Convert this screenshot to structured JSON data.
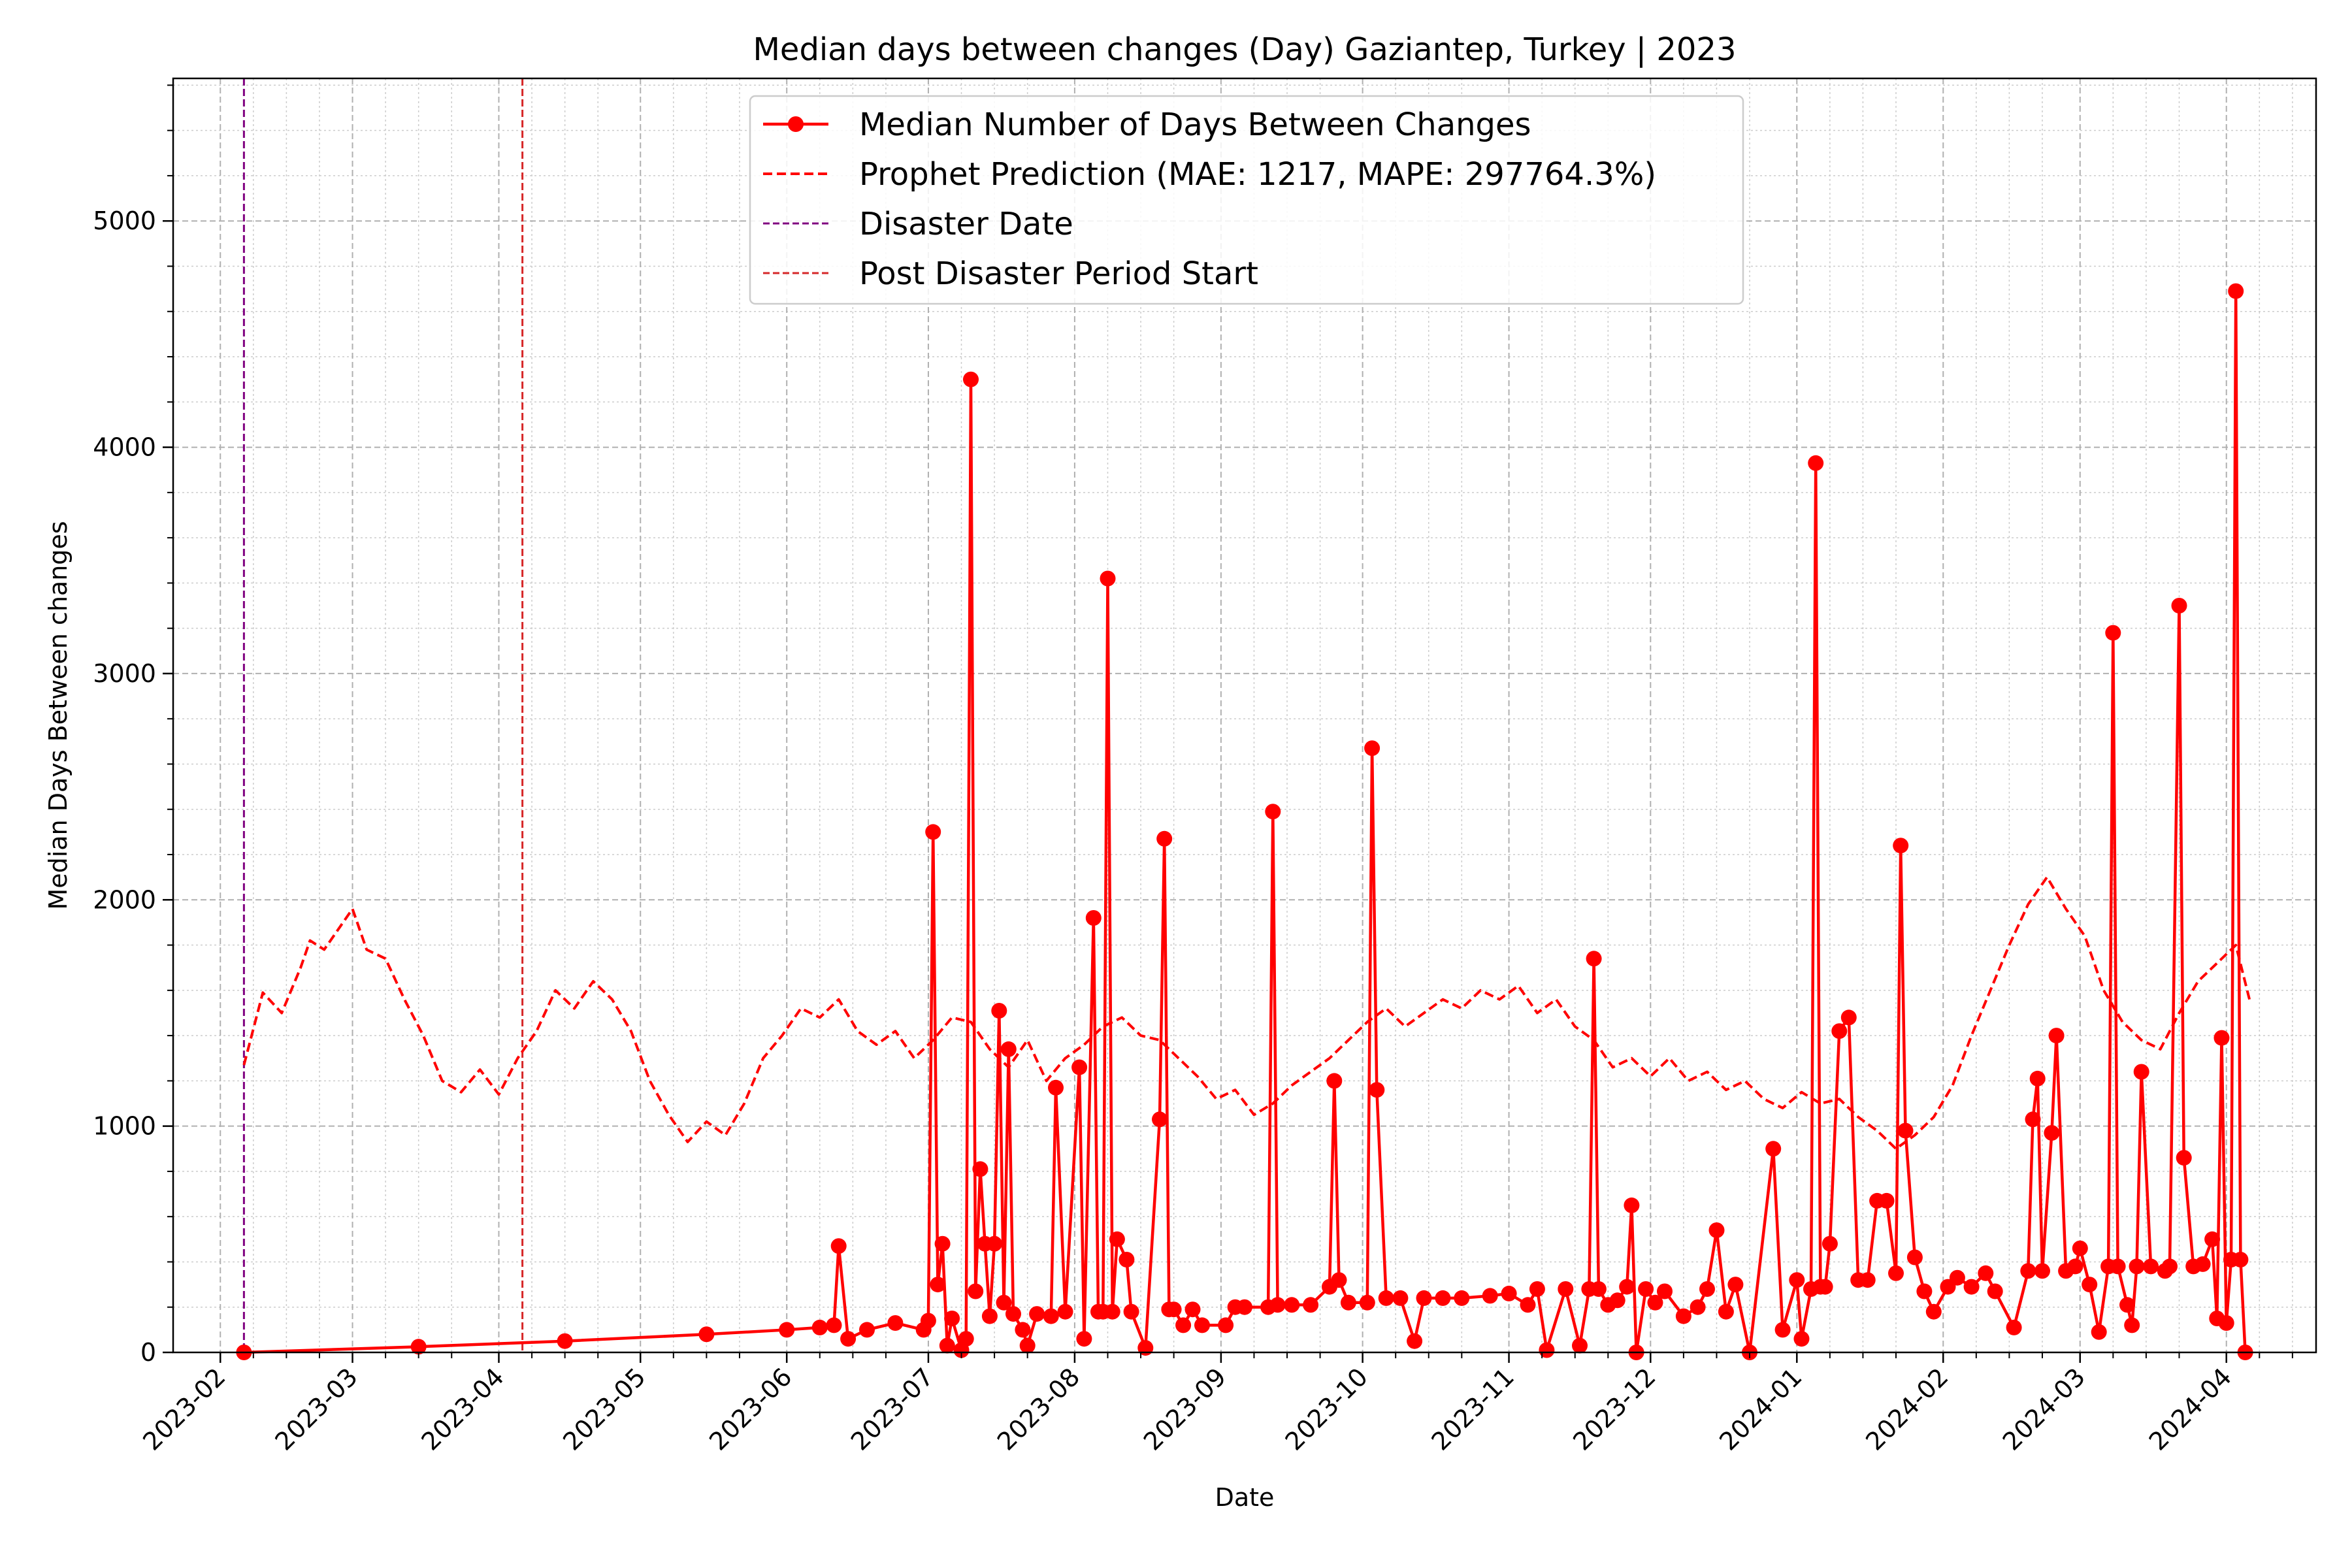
{
  "chart_data": {
    "type": "line",
    "title": "Median days between changes (Day) Gaziantep, Turkey | 2023",
    "xlabel": "Date",
    "ylabel": "Median Days Between changes",
    "xlim": [
      "2023-01-22",
      "2024-04-20"
    ],
    "ylim": [
      0,
      5630
    ],
    "grid": true,
    "legend_position": "top-center",
    "x_ticks": [
      "2023-02",
      "2023-03",
      "2023-04",
      "2023-05",
      "2023-06",
      "2023-07",
      "2023-08",
      "2023-09",
      "2023-10",
      "2023-11",
      "2023-12",
      "2024-01",
      "2024-02",
      "2024-03",
      "2024-04"
    ],
    "y_ticks": [
      0,
      1000,
      2000,
      3000,
      4000,
      5000
    ],
    "vlines": [
      {
        "name": "Disaster Date",
        "x": "2023-02-06",
        "color": "#800080"
      },
      {
        "name": "Post Disaster Period Start",
        "x": "2023-04-06",
        "color": "#d62728"
      }
    ],
    "series": [
      {
        "name": "Median Number of Days Between Changes",
        "style": "line-marker",
        "color": "#ff0000",
        "points": [
          [
            "2023-02-06",
            0
          ],
          [
            "2023-03-15",
            25
          ],
          [
            "2023-04-15",
            50
          ],
          [
            "2023-05-15",
            80
          ],
          [
            "2023-06-01",
            100
          ],
          [
            "2023-06-08",
            110
          ],
          [
            "2023-06-11",
            120
          ],
          [
            "2023-06-12",
            470
          ],
          [
            "2023-06-14",
            60
          ],
          [
            "2023-06-18",
            100
          ],
          [
            "2023-06-24",
            130
          ],
          [
            "2023-06-30",
            100
          ],
          [
            "2023-07-01",
            140
          ],
          [
            "2023-07-02",
            2300
          ],
          [
            "2023-07-03",
            300
          ],
          [
            "2023-07-04",
            480
          ],
          [
            "2023-07-05",
            30
          ],
          [
            "2023-07-06",
            150
          ],
          [
            "2023-07-08",
            10
          ],
          [
            "2023-07-09",
            60
          ],
          [
            "2023-07-10",
            4300
          ],
          [
            "2023-07-11",
            270
          ],
          [
            "2023-07-12",
            810
          ],
          [
            "2023-07-13",
            480
          ],
          [
            "2023-07-14",
            160
          ],
          [
            "2023-07-15",
            480
          ],
          [
            "2023-07-16",
            1510
          ],
          [
            "2023-07-17",
            220
          ],
          [
            "2023-07-18",
            1340
          ],
          [
            "2023-07-19",
            170
          ],
          [
            "2023-07-21",
            100
          ],
          [
            "2023-07-22",
            30
          ],
          [
            "2023-07-24",
            170
          ],
          [
            "2023-07-27",
            160
          ],
          [
            "2023-07-28",
            1170
          ],
          [
            "2023-07-30",
            180
          ],
          [
            "2023-08-02",
            1260
          ],
          [
            "2023-08-03",
            60
          ],
          [
            "2023-08-05",
            1920
          ],
          [
            "2023-08-06",
            180
          ],
          [
            "2023-08-07",
            180
          ],
          [
            "2023-08-08",
            3420
          ],
          [
            "2023-08-09",
            180
          ],
          [
            "2023-08-10",
            500
          ],
          [
            "2023-08-12",
            410
          ],
          [
            "2023-08-13",
            180
          ],
          [
            "2023-08-16",
            20
          ],
          [
            "2023-08-19",
            1030
          ],
          [
            "2023-08-20",
            2270
          ],
          [
            "2023-08-21",
            190
          ],
          [
            "2023-08-22",
            190
          ],
          [
            "2023-08-24",
            120
          ],
          [
            "2023-08-26",
            190
          ],
          [
            "2023-08-28",
            120
          ],
          [
            "2023-09-02",
            120
          ],
          [
            "2023-09-04",
            200
          ],
          [
            "2023-09-06",
            200
          ],
          [
            "2023-09-11",
            200
          ],
          [
            "2023-09-12",
            2390
          ],
          [
            "2023-09-13",
            210
          ],
          [
            "2023-09-16",
            210
          ],
          [
            "2023-09-20",
            210
          ],
          [
            "2023-09-24",
            290
          ],
          [
            "2023-09-25",
            1200
          ],
          [
            "2023-09-26",
            320
          ],
          [
            "2023-09-28",
            220
          ],
          [
            "2023-10-02",
            220
          ],
          [
            "2023-10-03",
            2670
          ],
          [
            "2023-10-04",
            1160
          ],
          [
            "2023-10-06",
            240
          ],
          [
            "2023-10-09",
            240
          ],
          [
            "2023-10-12",
            50
          ],
          [
            "2023-10-14",
            240
          ],
          [
            "2023-10-18",
            240
          ],
          [
            "2023-10-22",
            240
          ],
          [
            "2023-10-28",
            250
          ],
          [
            "2023-11-01",
            260
          ],
          [
            "2023-11-05",
            210
          ],
          [
            "2023-11-07",
            280
          ],
          [
            "2023-11-09",
            10
          ],
          [
            "2023-11-13",
            280
          ],
          [
            "2023-11-16",
            30
          ],
          [
            "2023-11-18",
            280
          ],
          [
            "2023-11-19",
            1740
          ],
          [
            "2023-11-20",
            280
          ],
          [
            "2023-11-22",
            210
          ],
          [
            "2023-11-24",
            230
          ],
          [
            "2023-11-26",
            290
          ],
          [
            "2023-11-27",
            650
          ],
          [
            "2023-11-28",
            0
          ],
          [
            "2023-11-30",
            280
          ],
          [
            "2023-12-02",
            220
          ],
          [
            "2023-12-04",
            270
          ],
          [
            "2023-12-08",
            160
          ],
          [
            "2023-12-11",
            200
          ],
          [
            "2023-12-13",
            280
          ],
          [
            "2023-12-15",
            540
          ],
          [
            "2023-12-17",
            180
          ],
          [
            "2023-12-19",
            300
          ],
          [
            "2023-12-22",
            0
          ],
          [
            "2023-12-27",
            900
          ],
          [
            "2023-12-29",
            100
          ],
          [
            "2024-01-01",
            320
          ],
          [
            "2024-01-02",
            60
          ],
          [
            "2024-01-04",
            280
          ],
          [
            "2024-01-05",
            3930
          ],
          [
            "2024-01-06",
            290
          ],
          [
            "2024-01-07",
            290
          ],
          [
            "2024-01-08",
            480
          ],
          [
            "2024-01-10",
            1420
          ],
          [
            "2024-01-12",
            1480
          ],
          [
            "2024-01-14",
            320
          ],
          [
            "2024-01-16",
            320
          ],
          [
            "2024-01-18",
            670
          ],
          [
            "2024-01-20",
            670
          ],
          [
            "2024-01-22",
            350
          ],
          [
            "2024-01-23",
            2240
          ],
          [
            "2024-01-24",
            980
          ],
          [
            "2024-01-26",
            420
          ],
          [
            "2024-01-28",
            270
          ],
          [
            "2024-01-30",
            180
          ],
          [
            "2024-02-02",
            290
          ],
          [
            "2024-02-04",
            330
          ],
          [
            "2024-02-07",
            290
          ],
          [
            "2024-02-10",
            350
          ],
          [
            "2024-02-12",
            270
          ],
          [
            "2024-02-16",
            110
          ],
          [
            "2024-02-19",
            360
          ],
          [
            "2024-02-20",
            1030
          ],
          [
            "2024-02-21",
            1210
          ],
          [
            "2024-02-22",
            360
          ],
          [
            "2024-02-24",
            970
          ],
          [
            "2024-02-25",
            1400
          ],
          [
            "2024-02-27",
            360
          ],
          [
            "2024-02-29",
            380
          ],
          [
            "2024-03-01",
            460
          ],
          [
            "2024-03-03",
            300
          ],
          [
            "2024-03-05",
            90
          ],
          [
            "2024-03-07",
            380
          ],
          [
            "2024-03-08",
            3180
          ],
          [
            "2024-03-09",
            380
          ],
          [
            "2024-03-11",
            210
          ],
          [
            "2024-03-12",
            120
          ],
          [
            "2024-03-13",
            380
          ],
          [
            "2024-03-14",
            1240
          ],
          [
            "2024-03-16",
            380
          ],
          [
            "2024-03-19",
            360
          ],
          [
            "2024-03-20",
            380
          ],
          [
            "2024-03-22",
            3300
          ],
          [
            "2024-03-23",
            860
          ],
          [
            "2024-03-25",
            380
          ],
          [
            "2024-03-27",
            390
          ],
          [
            "2024-03-29",
            500
          ],
          [
            "2024-03-30",
            150
          ],
          [
            "2024-03-31",
            1390
          ],
          [
            "2024-04-01",
            130
          ],
          [
            "2024-04-02",
            410
          ],
          [
            "2024-04-03",
            4690
          ],
          [
            "2024-04-04",
            410
          ],
          [
            "2024-04-05",
            0
          ]
        ]
      },
      {
        "name": "Prophet Prediction (MAE: 1217, MAPE: 297764.3%)",
        "style": "dashed",
        "color": "#ff0000",
        "points": [
          [
            "2023-02-06",
            1270
          ],
          [
            "2023-02-10",
            1590
          ],
          [
            "2023-02-14",
            1500
          ],
          [
            "2023-02-18",
            1700
          ],
          [
            "2023-02-20",
            1820
          ],
          [
            "2023-02-23",
            1780
          ],
          [
            "2023-02-27",
            1900
          ],
          [
            "2023-03-01",
            1960
          ],
          [
            "2023-03-04",
            1780
          ],
          [
            "2023-03-08",
            1740
          ],
          [
            "2023-03-12",
            1560
          ],
          [
            "2023-03-16",
            1400
          ],
          [
            "2023-03-20",
            1200
          ],
          [
            "2023-03-24",
            1150
          ],
          [
            "2023-03-28",
            1250
          ],
          [
            "2023-04-01",
            1140
          ],
          [
            "2023-04-05",
            1300
          ],
          [
            "2023-04-09",
            1420
          ],
          [
            "2023-04-13",
            1600
          ],
          [
            "2023-04-17",
            1520
          ],
          [
            "2023-04-21",
            1640
          ],
          [
            "2023-04-25",
            1560
          ],
          [
            "2023-04-29",
            1420
          ],
          [
            "2023-05-03",
            1200
          ],
          [
            "2023-05-07",
            1050
          ],
          [
            "2023-05-11",
            930
          ],
          [
            "2023-05-15",
            1020
          ],
          [
            "2023-05-19",
            960
          ],
          [
            "2023-05-23",
            1100
          ],
          [
            "2023-05-27",
            1300
          ],
          [
            "2023-05-31",
            1400
          ],
          [
            "2023-06-04",
            1520
          ],
          [
            "2023-06-08",
            1480
          ],
          [
            "2023-06-12",
            1560
          ],
          [
            "2023-06-16",
            1420
          ],
          [
            "2023-06-20",
            1360
          ],
          [
            "2023-06-24",
            1420
          ],
          [
            "2023-06-28",
            1300
          ],
          [
            "2023-07-02",
            1380
          ],
          [
            "2023-07-06",
            1480
          ],
          [
            "2023-07-10",
            1460
          ],
          [
            "2023-07-14",
            1340
          ],
          [
            "2023-07-18",
            1260
          ],
          [
            "2023-07-22",
            1380
          ],
          [
            "2023-07-26",
            1200
          ],
          [
            "2023-07-30",
            1300
          ],
          [
            "2023-08-03",
            1360
          ],
          [
            "2023-08-07",
            1440
          ],
          [
            "2023-08-11",
            1480
          ],
          [
            "2023-08-15",
            1400
          ],
          [
            "2023-08-19",
            1380
          ],
          [
            "2023-08-23",
            1300
          ],
          [
            "2023-08-27",
            1220
          ],
          [
            "2023-08-31",
            1120
          ],
          [
            "2023-09-04",
            1160
          ],
          [
            "2023-09-08",
            1050
          ],
          [
            "2023-09-12",
            1100
          ],
          [
            "2023-09-16",
            1180
          ],
          [
            "2023-09-20",
            1240
          ],
          [
            "2023-09-24",
            1300
          ],
          [
            "2023-09-28",
            1380
          ],
          [
            "2023-10-02",
            1460
          ],
          [
            "2023-10-06",
            1520
          ],
          [
            "2023-10-10",
            1440
          ],
          [
            "2023-10-14",
            1500
          ],
          [
            "2023-10-18",
            1560
          ],
          [
            "2023-10-22",
            1520
          ],
          [
            "2023-10-26",
            1600
          ],
          [
            "2023-10-30",
            1560
          ],
          [
            "2023-11-03",
            1620
          ],
          [
            "2023-11-07",
            1500
          ],
          [
            "2023-11-11",
            1560
          ],
          [
            "2023-11-15",
            1440
          ],
          [
            "2023-11-19",
            1380
          ],
          [
            "2023-11-23",
            1260
          ],
          [
            "2023-11-27",
            1300
          ],
          [
            "2023-12-01",
            1220
          ],
          [
            "2023-12-05",
            1300
          ],
          [
            "2023-12-09",
            1200
          ],
          [
            "2023-12-13",
            1240
          ],
          [
            "2023-12-17",
            1160
          ],
          [
            "2023-12-21",
            1200
          ],
          [
            "2023-12-25",
            1120
          ],
          [
            "2023-12-29",
            1080
          ],
          [
            "2024-01-02",
            1150
          ],
          [
            "2024-01-06",
            1100
          ],
          [
            "2024-01-10",
            1120
          ],
          [
            "2024-01-14",
            1040
          ],
          [
            "2024-01-18",
            980
          ],
          [
            "2024-01-22",
            900
          ],
          [
            "2024-01-26",
            960
          ],
          [
            "2024-01-30",
            1040
          ],
          [
            "2024-02-03",
            1180
          ],
          [
            "2024-02-07",
            1400
          ],
          [
            "2024-02-11",
            1600
          ],
          [
            "2024-02-15",
            1800
          ],
          [
            "2024-02-19",
            1980
          ],
          [
            "2024-02-23",
            2100
          ],
          [
            "2024-02-27",
            1960
          ],
          [
            "2024-03-02",
            1840
          ],
          [
            "2024-03-06",
            1600
          ],
          [
            "2024-03-10",
            1460
          ],
          [
            "2024-03-14",
            1380
          ],
          [
            "2024-03-18",
            1340
          ],
          [
            "2024-03-22",
            1500
          ],
          [
            "2024-03-26",
            1640
          ],
          [
            "2024-03-30",
            1720
          ],
          [
            "2024-04-03",
            1800
          ],
          [
            "2024-04-06",
            1550
          ]
        ]
      }
    ]
  }
}
